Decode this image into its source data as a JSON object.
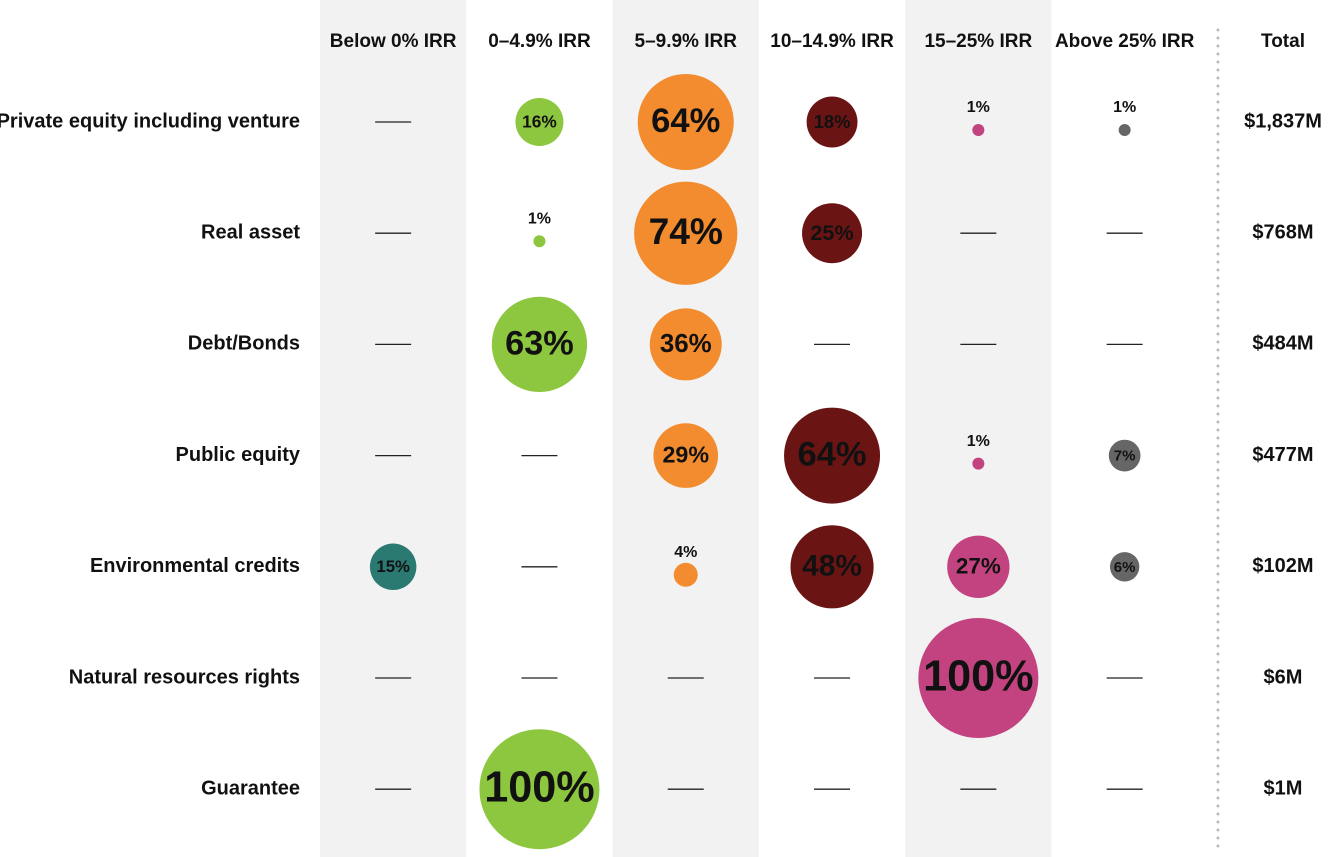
{
  "chart_data": {
    "type": "bubble_matrix",
    "categories": [
      "Below 0% IRR",
      "0–4.9% IRR",
      "5–9.9% IRR",
      "10–14.9% IRR",
      "15–25% IRR",
      "Above 25% IRR"
    ],
    "colors": [
      "#2a7a72",
      "#8dc63f",
      "#f28c2f",
      "#6b1414",
      "#c2437f",
      "#666666"
    ],
    "total_header": "Total",
    "series": [
      {
        "name": "Private equity including venture",
        "values": [
          null,
          16,
          64,
          18,
          1,
          1
        ],
        "value_labels": [
          null,
          "16%",
          "64%",
          "18%",
          "1%",
          "1%"
        ],
        "total": "$1,837M"
      },
      {
        "name": "Real asset",
        "values": [
          null,
          1,
          74,
          25,
          null,
          null
        ],
        "value_labels": [
          null,
          "1%",
          "74%",
          "25%",
          null,
          null
        ],
        "total": "$768M"
      },
      {
        "name": "Debt/Bonds",
        "values": [
          null,
          63,
          36,
          null,
          null,
          null
        ],
        "value_labels": [
          null,
          "63%",
          "36%",
          null,
          null,
          null
        ],
        "total": "$484M"
      },
      {
        "name": "Public equity",
        "values": [
          null,
          null,
          29,
          64,
          1,
          7
        ],
        "value_labels": [
          null,
          null,
          "29%",
          "64%",
          "1%",
          "7%"
        ],
        "total": "$477M"
      },
      {
        "name": "Environmental credits",
        "values": [
          15,
          null,
          4,
          48,
          27,
          6
        ],
        "value_labels": [
          "15%",
          null,
          "4%",
          "48%",
          "27%",
          "6%"
        ],
        "total": "$102M"
      },
      {
        "name": "Natural resources rights",
        "values": [
          null,
          null,
          null,
          null,
          100,
          null
        ],
        "value_labels": [
          null,
          null,
          null,
          null,
          "100%",
          null
        ],
        "total": "$6M"
      },
      {
        "name": "Guarantee",
        "values": [
          null,
          100,
          null,
          null,
          null,
          null
        ],
        "value_labels": [
          null,
          "100%",
          null,
          null,
          null,
          null
        ],
        "total": "$1M"
      }
    ]
  }
}
